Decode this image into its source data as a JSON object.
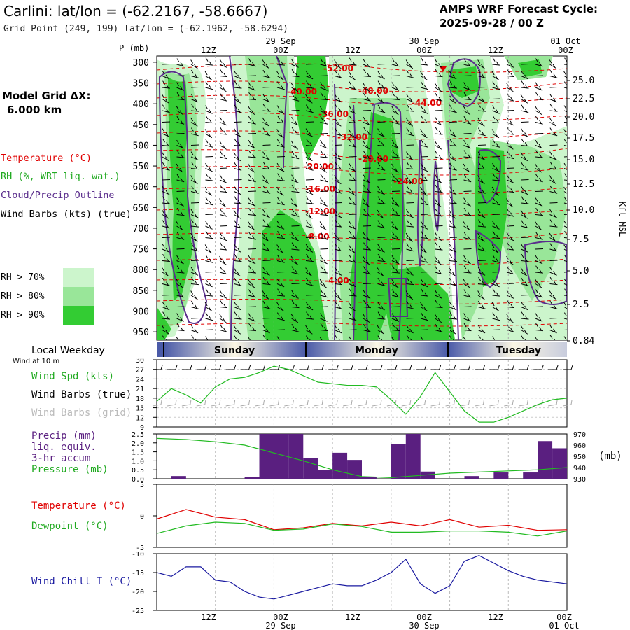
{
  "header": {
    "title": "Carlini:  lat/lon = (-62.2167, -58.6667)",
    "subtitle": "Grid Point (249, 199) lat/lon = (-62.1962, -58.6294)",
    "cycle_line1": "AMPS WRF Forecast Cycle:",
    "cycle_line2": "2025-09-28 / 00  Z"
  },
  "legend": {
    "model_grid_1": "Model Grid ΔX:",
    "model_grid_2": "6.000 km",
    "temperature": "Temperature (°C)",
    "rh": "RH (%, WRT liq. wat.)",
    "cloud": "Cloud/Precip Outline",
    "wind": "Wind Barbs (kts) (true)",
    "rh70": "RH > 70%",
    "rh80": "RH > 80%",
    "rh90": "RH > 90%"
  },
  "colors": {
    "rh70": "#ccf5cc",
    "rh80": "#99e699",
    "rh90": "#33cc33",
    "temperature": "#e00000",
    "cloud": "#5a2d8c",
    "wind_speed": "#22bb22",
    "precip": "#5a1f80",
    "pressure": "#22bb22",
    "dewpoint": "#22bb22",
    "windchill": "#1a1aa0",
    "weekday_bar": "#4a5aa8"
  },
  "time_axis": {
    "top_dates": [
      "29 Sep",
      "30 Sep",
      "01 Oct"
    ],
    "top_hours": [
      "12Z",
      "00Z",
      "12Z",
      "00Z",
      "12Z",
      "00Z"
    ],
    "bottom_hours": [
      "12Z",
      "00Z",
      "12Z",
      "00Z",
      "12Z",
      "00Z"
    ],
    "bottom_dates": [
      "29 Sep",
      "30 Sep",
      "01 Oct"
    ]
  },
  "weekday": {
    "label": "Local Weekday",
    "days": [
      "Sunday",
      "Monday",
      "Tuesday"
    ],
    "wind_note": "Wind at 10 m"
  },
  "chart_data": [
    {
      "type": "heatmap",
      "name": "cross-section",
      "ylabel": "P (mb)",
      "y2label": "Kft MSL",
      "pressure_ticks": [
        300,
        350,
        400,
        450,
        500,
        550,
        600,
        650,
        700,
        750,
        800,
        850,
        900,
        950
      ],
      "height_ticks": [
        "25.0",
        "22.5",
        "20.0",
        "17.5",
        "15.0",
        "12.5",
        "10.0",
        "7.5",
        "5.0",
        "2.5",
        "0.84"
      ],
      "temperature_labels": [
        "-52.00",
        "-48.00",
        "-44.00",
        "-40.00",
        "-36.00",
        "-32.00",
        "-28.00",
        "-24.00",
        "-20.00",
        "-16.00",
        "-12.00",
        "-8.00",
        "-4.00"
      ]
    },
    {
      "type": "line",
      "name": "wind-speed",
      "ylabel": "Wind Spd (kts)",
      "label_barbs_true": "Wind Barbs (true)",
      "label_barbs_grid": "Wind Barbs (grid)",
      "ylim": [
        9,
        30
      ],
      "y_ticks": [
        9,
        12,
        15,
        18,
        21,
        24,
        27,
        30
      ],
      "x": [
        0,
        3,
        6,
        9,
        12,
        15,
        18,
        21,
        24,
        27,
        30,
        33,
        36,
        39,
        42,
        45,
        48,
        51,
        54,
        57,
        60,
        63,
        66,
        69,
        72,
        75,
        78,
        81,
        84
      ],
      "values": [
        17,
        21,
        19,
        16.5,
        21.5,
        24,
        24.5,
        26,
        28,
        27,
        25,
        23,
        22.5,
        22,
        22,
        21.5,
        17.5,
        13,
        18.5,
        26,
        20,
        14,
        10.5,
        10.5,
        12,
        14,
        16,
        17.5,
        18
      ]
    },
    {
      "type": "bar",
      "name": "precip-pressure",
      "ylabel": "Precip (mm)",
      "ylabel_line2": "liq. equiv.",
      "ylabel_line3": "3-hr accum",
      "y2label": "Pressure (mb)",
      "y2unit": "(mb)",
      "ylim": [
        0,
        2.5
      ],
      "y_ticks": [
        "0.0",
        "0.5",
        "1.0",
        "1.5",
        "2.0",
        "2.5"
      ],
      "y2lim": [
        930,
        970
      ],
      "y2_ticks": [
        930,
        940,
        950,
        960,
        970
      ],
      "x": [
        0,
        3,
        6,
        9,
        12,
        15,
        18,
        21,
        24,
        27,
        30,
        33,
        36,
        39,
        42,
        45,
        48,
        51,
        54,
        57,
        60,
        63,
        66,
        69,
        72,
        75,
        78,
        81
      ],
      "precip": [
        0,
        0.15,
        0,
        0,
        0,
        0,
        0.1,
        2.5,
        2.5,
        2.5,
        1.15,
        0.5,
        1.45,
        1.05,
        0.1,
        0,
        1.95,
        2.5,
        0.4,
        0,
        0,
        0.15,
        0,
        0.35,
        0,
        0.35,
        2.1,
        1.7
      ],
      "pressure_x": [
        0,
        6,
        12,
        18,
        24,
        30,
        36,
        42,
        48,
        54,
        60,
        66,
        72,
        78,
        84
      ],
      "pressure": [
        966,
        965,
        963,
        960,
        953,
        946,
        938,
        932,
        931,
        933,
        935,
        936,
        937,
        938,
        940
      ]
    },
    {
      "type": "line",
      "name": "temperature-dewpoint",
      "series_temperature": "Temperature (°C)",
      "series_dewpoint": "Dewpoint (°C)",
      "ylim": [
        -5,
        5
      ],
      "y_ticks": [
        -5,
        0,
        5
      ],
      "x": [
        0,
        6,
        12,
        18,
        24,
        30,
        36,
        42,
        48,
        54,
        60,
        66,
        72,
        78,
        84
      ],
      "temperature": [
        -0.5,
        1.0,
        -0.2,
        -0.6,
        -2.2,
        -1.9,
        -1.2,
        -1.6,
        -1.0,
        -1.6,
        -0.6,
        -1.8,
        -1.5,
        -2.3,
        -2.2
      ],
      "dewpoint": [
        -2.8,
        -1.6,
        -1.0,
        -1.2,
        -2.3,
        -2.1,
        -1.3,
        -1.7,
        -2.6,
        -2.6,
        -2.4,
        -2.4,
        -2.6,
        -3.2,
        -2.4
      ]
    },
    {
      "type": "line",
      "name": "wind-chill",
      "series_windchill": "Wind Chill T (°C)",
      "ylim": [
        -25,
        -10
      ],
      "y_ticks": [
        -25,
        -20,
        -15,
        -10
      ],
      "x": [
        0,
        3,
        6,
        9,
        12,
        15,
        18,
        21,
        24,
        27,
        30,
        33,
        36,
        39,
        42,
        45,
        48,
        51,
        54,
        57,
        60,
        63,
        66,
        69,
        72,
        75,
        78,
        81,
        84
      ],
      "values": [
        -15,
        -16,
        -13.5,
        -13.5,
        -17,
        -17.5,
        -20,
        -21.5,
        -22,
        -21,
        -20,
        -19,
        -18,
        -18.5,
        -18.5,
        -17,
        -15,
        -11.5,
        -18,
        -20.5,
        -18.5,
        -12,
        -10.5,
        -12.5,
        -14.5,
        -16,
        -17,
        -17.5,
        -18
      ]
    }
  ]
}
